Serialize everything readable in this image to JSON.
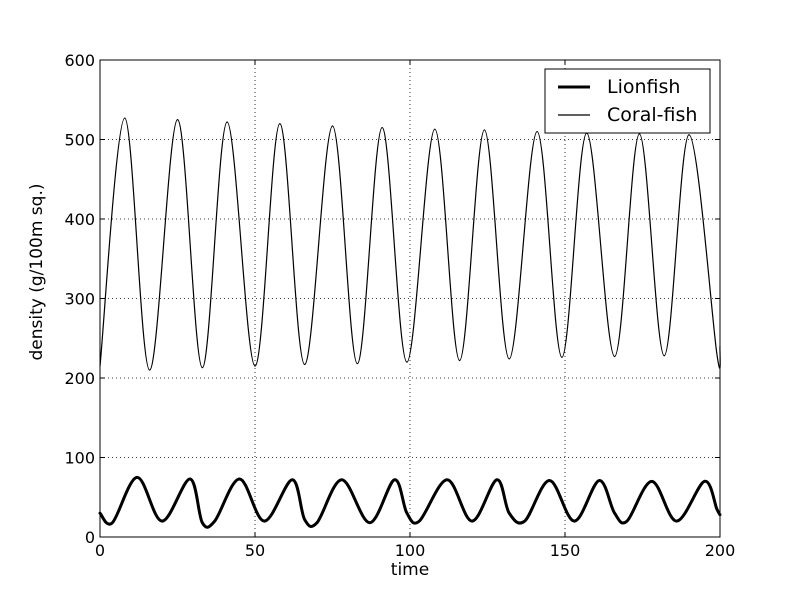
{
  "chart_data": {
    "type": "line",
    "title": "",
    "xlabel": "time",
    "ylabel": "density (g/100m sq.)",
    "xlim": [
      0,
      200
    ],
    "ylim": [
      0,
      600
    ],
    "x_ticks": [
      "0",
      "50",
      "100",
      "150",
      "200"
    ],
    "y_ticks": [
      "0",
      "100",
      "200",
      "300",
      "400",
      "500",
      "600"
    ],
    "grid": true,
    "grid_style": "dotted",
    "legend_position": "top-right",
    "series": [
      {
        "name": "Lionfish",
        "style": "thick",
        "color": "#000000",
        "x": [
          0,
          4,
          12,
          20,
          29,
          33,
          37,
          45,
          53,
          62,
          66,
          70,
          78,
          87,
          95,
          99,
          103,
          112,
          120,
          128,
          132,
          137,
          145,
          153,
          161,
          166,
          170,
          178,
          186,
          195,
          199,
          200
        ],
        "y": [
          30,
          18,
          75,
          20,
          73,
          18,
          20,
          73,
          20,
          72,
          22,
          18,
          72,
          18,
          72,
          30,
          20,
          72,
          20,
          72,
          30,
          20,
          71,
          20,
          71,
          30,
          20,
          70,
          20,
          70,
          35,
          28
        ]
      },
      {
        "name": "Coral-fish",
        "style": "thin",
        "color": "#000000",
        "x": [
          0,
          8,
          16,
          25,
          33,
          41,
          50,
          58,
          66,
          75,
          83,
          91,
          99,
          108,
          116,
          124,
          132,
          141,
          149,
          157,
          166,
          174,
          182,
          190,
          199,
          200
        ],
        "y": [
          215,
          527,
          210,
          525,
          213,
          522,
          215,
          520,
          217,
          517,
          218,
          515,
          220,
          513,
          222,
          512,
          224,
          510,
          226,
          508,
          227,
          507,
          228,
          506,
          230,
          240
        ]
      }
    ]
  }
}
